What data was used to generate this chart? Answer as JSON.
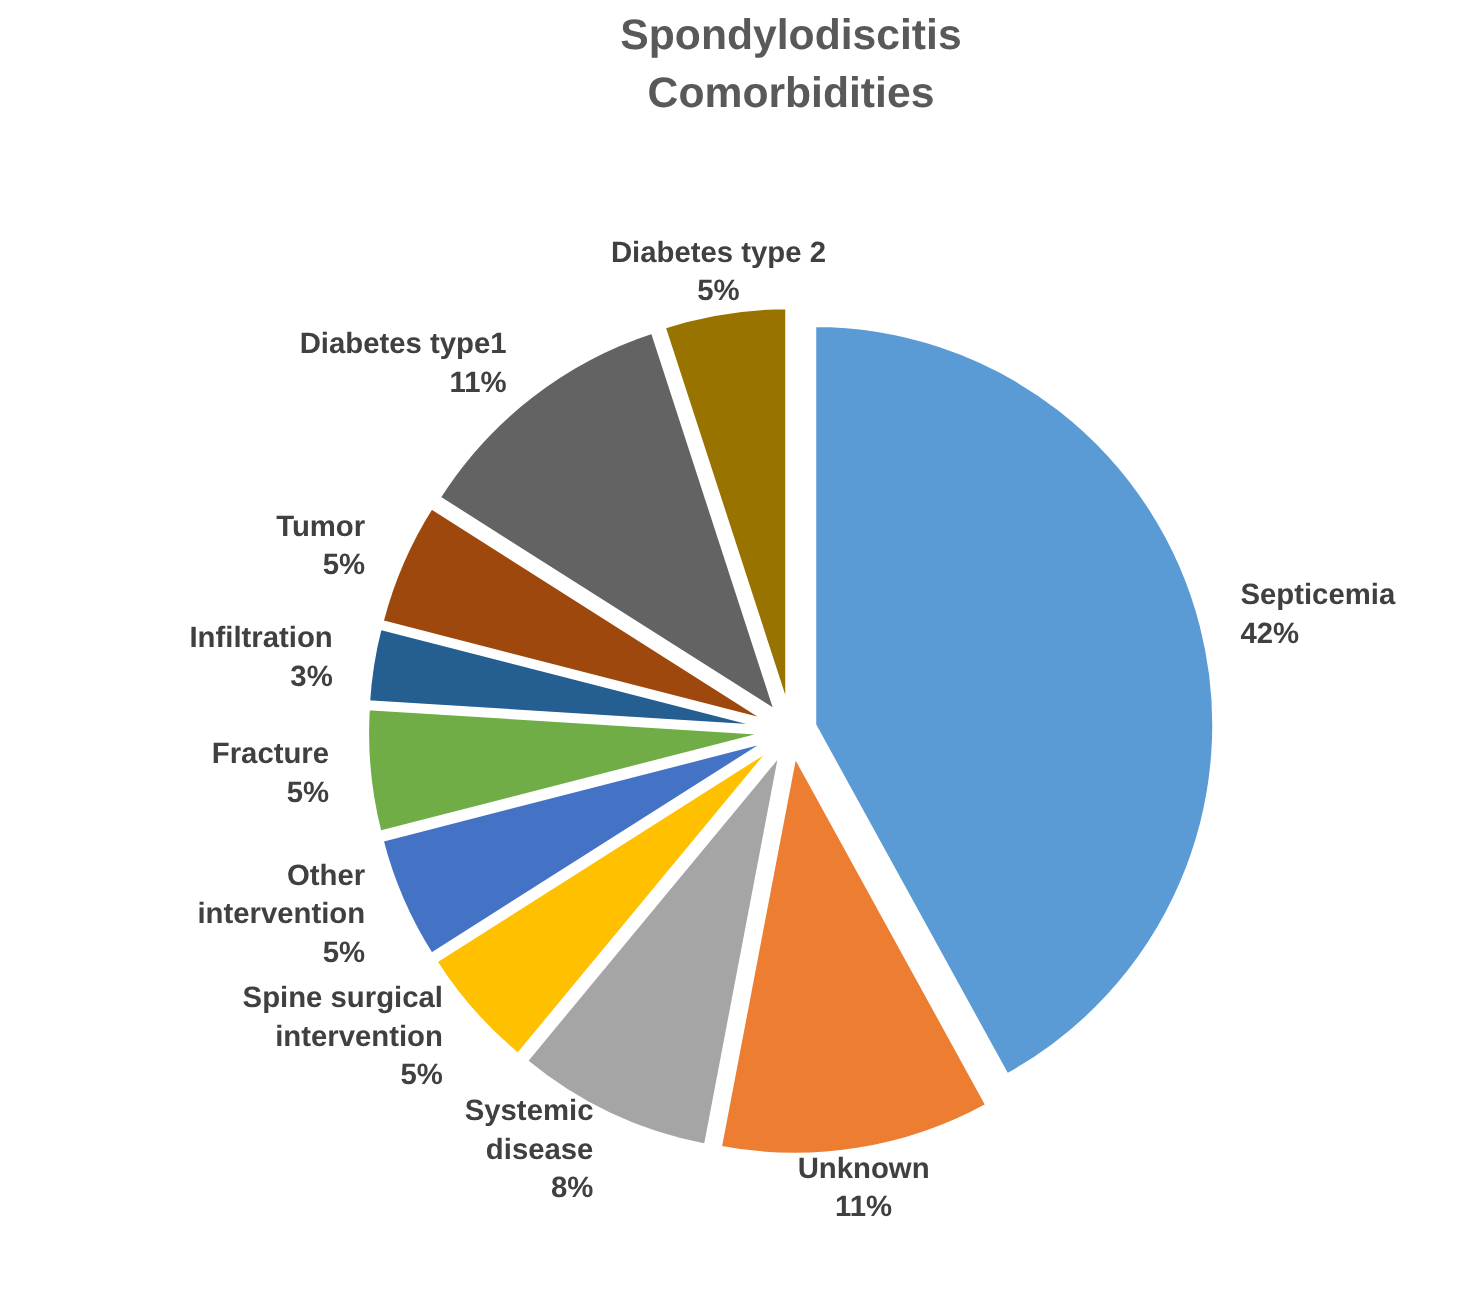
{
  "chart_data": {
    "type": "pie",
    "title": "Spondylodiscitis\nComorbidities",
    "categories": [
      "Septicemia",
      "Unknown",
      "Systemic\ndisease",
      "Spine surgical\nintervention",
      "Other\nintervention",
      "Fracture",
      "Infiltration",
      "Tumor",
      "Diabetes type1",
      "Diabetes type 2"
    ],
    "values": [
      42,
      11,
      8,
      5,
      5,
      5,
      3,
      5,
      11,
      5
    ],
    "colors": [
      "#5b9bd5",
      "#ed7d31",
      "#a5a5a5",
      "#ffc000",
      "#4472c4",
      "#70ad47",
      "#255e91",
      "#9e480e",
      "#636363",
      "#997300"
    ],
    "value_labels": [
      "42%",
      "11%",
      "8%",
      "5%",
      "5%",
      "5%",
      "3%",
      "5%",
      "11%",
      "5%"
    ]
  }
}
